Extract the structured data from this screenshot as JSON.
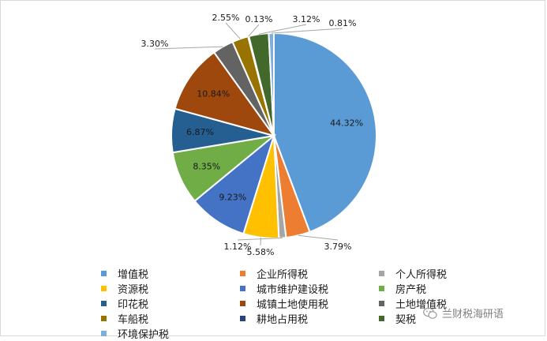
{
  "chart_data": {
    "type": "pie",
    "title": "",
    "legend_position": "bottom",
    "series": [
      {
        "name": "增值税",
        "value": 44.32,
        "label": "44.32%",
        "color": "#5b9bd5"
      },
      {
        "name": "企业所得税",
        "value": 3.79,
        "label": "3.79%",
        "color": "#ed7d31"
      },
      {
        "name": "个人所得税",
        "value": 1.12,
        "label": "1.12%",
        "color": "#a5a5a5"
      },
      {
        "name": "资源税",
        "value": 5.58,
        "label": "5.58%",
        "color": "#ffc000"
      },
      {
        "name": "城市维护建设税",
        "value": 9.23,
        "label": "9.23%",
        "color": "#4472c4"
      },
      {
        "name": "房产税",
        "value": 8.35,
        "label": "8.35%",
        "color": "#70ad47"
      },
      {
        "name": "印花税",
        "value": 6.87,
        "label": "6.87%",
        "color": "#255e91"
      },
      {
        "name": "城镇土地使用税",
        "value": 10.84,
        "label": "10.84%",
        "color": "#9e480e"
      },
      {
        "name": "土地增值税",
        "value": 3.3,
        "label": "3.30%",
        "color": "#636363"
      },
      {
        "name": "车船税",
        "value": 2.55,
        "label": "2.55%",
        "color": "#997300"
      },
      {
        "name": "耕地占用税",
        "value": 0.13,
        "label": "0.13%",
        "color": "#264478"
      },
      {
        "name": "契税",
        "value": 3.12,
        "label": "3.12%",
        "color": "#43682b"
      },
      {
        "name": "环境保护税",
        "value": 0.81,
        "label": "0.81%",
        "color": "#7cafdd"
      }
    ]
  },
  "watermark": {
    "text": "兰财税海研语",
    "icon": "wechat-icon"
  }
}
